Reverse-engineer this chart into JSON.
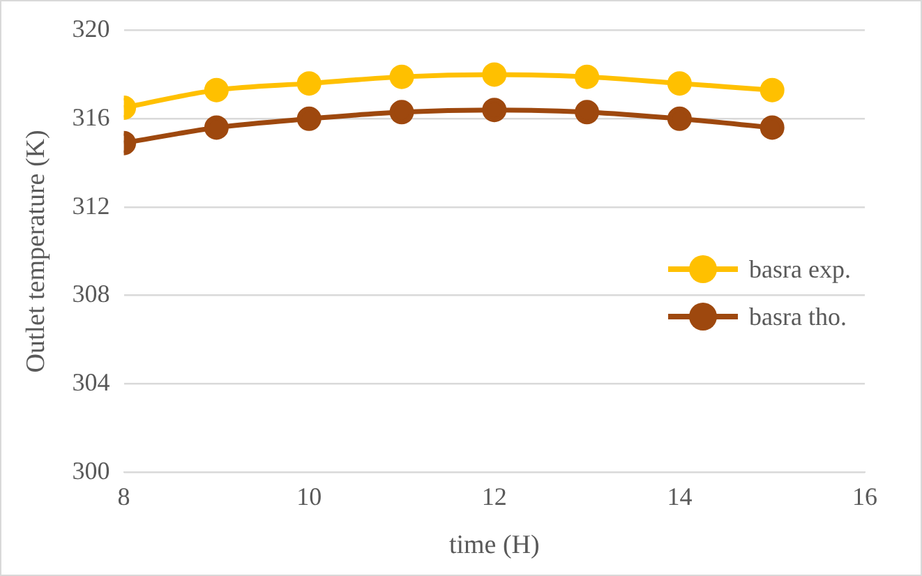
{
  "chart_data": {
    "type": "line",
    "xlabel": "time (H)",
    "ylabel": "Outlet temperature (K)",
    "x": [
      8,
      9,
      10,
      11,
      12,
      13,
      14,
      15
    ],
    "series": [
      {
        "name": "basra exp.",
        "color": "#ffc000",
        "values": [
          316.5,
          317.3,
          317.6,
          317.9,
          318.0,
          317.9,
          317.6,
          317.3
        ]
      },
      {
        "name": "basra tho.",
        "color": "#9e480e",
        "values": [
          314.9,
          315.6,
          316.0,
          316.3,
          316.4,
          316.3,
          316.0,
          315.6
        ]
      }
    ],
    "xlim": [
      8,
      16
    ],
    "xticks": [
      8,
      10,
      12,
      14,
      16
    ],
    "ylim": [
      300,
      320
    ],
    "yticks": [
      300,
      304,
      308,
      312,
      316,
      320
    ],
    "grid": "y",
    "legend": "right",
    "marker": "circle",
    "line_style": "solid"
  }
}
